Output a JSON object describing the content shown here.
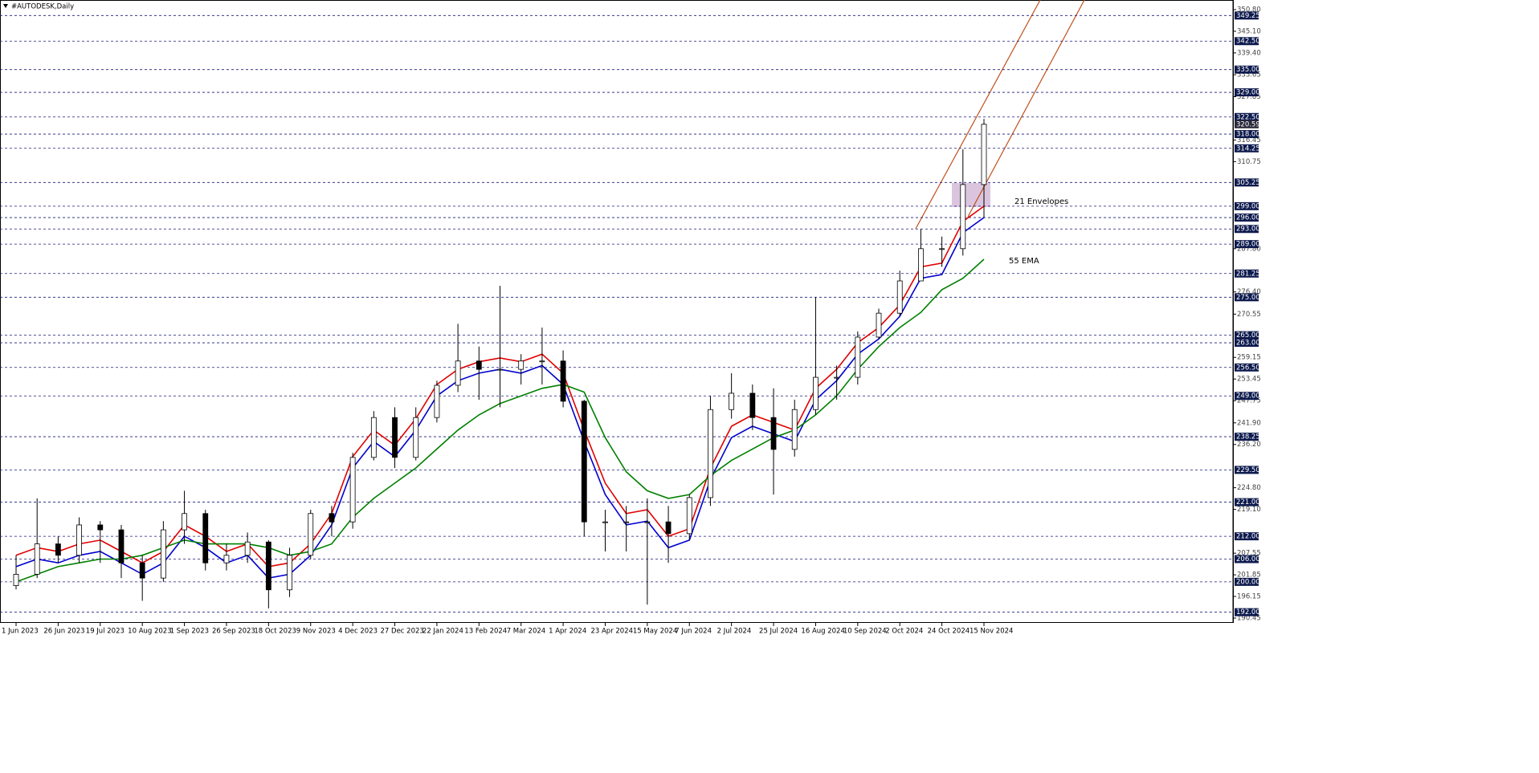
{
  "chart_data": {
    "type": "candlestick",
    "title": "#AUTODESK,Daily",
    "categories": [
      "1 Jun 2023",
      null,
      "26 Jun 2023",
      null,
      "19 Jul 2023",
      null,
      "10 Aug 2023",
      null,
      "1 Sep 2023",
      null,
      "26 Sep 2023",
      null,
      "18 Oct 2023",
      null,
      "9 Nov 2023",
      null,
      "4 Dec 2023",
      null,
      "27 Dec 2023",
      null,
      "22 Jan 2024",
      null,
      "13 Feb 2024",
      null,
      "7 Mar 2024",
      null,
      "1 Apr 2024",
      null,
      "23 Apr 2024",
      null,
      "15 May 2024",
      null,
      "7 Jun 2024",
      null,
      "2 Jul 2024",
      null,
      "25 Jul 2024",
      null,
      "16 Aug 2024",
      null,
      "10 Sep 2024",
      null,
      "2 Oct 2024",
      null,
      "24 Oct 2024",
      null,
      "15 Nov 2024"
    ],
    "open": [
      199,
      202,
      210,
      207,
      215,
      213.7,
      205,
      201,
      213.7,
      218,
      205,
      207,
      210.5,
      197.9,
      207,
      218,
      215.8,
      232.8,
      243.3,
      232.8,
      243.3,
      251.8,
      258.2,
      256,
      256,
      258.2,
      258.2,
      247.6,
      215.8,
      215.8,
      215.8,
      215.8,
      212.7,
      222.2,
      245.4,
      249.7,
      243.3,
      234.9,
      245.4,
      253.9,
      253.9,
      264.5,
      270.8,
      279.3,
      287.8,
      287.8,
      304.7
    ],
    "high": [
      207,
      222,
      212,
      217,
      216,
      215,
      207,
      216,
      224,
      219,
      210,
      213,
      211,
      209,
      219,
      220,
      234,
      245,
      246,
      246,
      253,
      268,
      262,
      278,
      260,
      267,
      261,
      248,
      219,
      220,
      222,
      220,
      223,
      249,
      255,
      252,
      251,
      248,
      275,
      257,
      266,
      272,
      282,
      293,
      291,
      314,
      322
    ],
    "low": [
      198,
      201,
      205,
      205,
      205,
      201,
      195,
      200,
      210,
      203,
      203,
      205,
      193,
      196,
      206,
      212,
      214,
      232,
      230,
      232,
      242,
      250,
      248,
      246,
      252,
      252,
      246,
      212,
      208,
      208,
      194,
      205,
      211,
      220,
      243,
      240,
      223,
      233,
      244,
      248,
      252,
      264,
      270,
      280,
      283,
      286,
      296
    ],
    "close": [
      202,
      210,
      207,
      215,
      213.7,
      205,
      201,
      213.7,
      218,
      205,
      207,
      210.5,
      197.9,
      207,
      218,
      215.8,
      232.8,
      243.3,
      232.8,
      243.3,
      251.8,
      258.2,
      256,
      256,
      258.2,
      258.2,
      247.6,
      215.8,
      215.8,
      215.8,
      215.8,
      212.7,
      222.2,
      245.4,
      249.7,
      243.3,
      234.9,
      245.4,
      253.9,
      253.9,
      264.5,
      270.8,
      279.3,
      287.8,
      287.8,
      304.7,
      320.59
    ],
    "lines": [
      {
        "color": "#e00000",
        "values": [
          207,
          209,
          208,
          210,
          211,
          208,
          205,
          208,
          215,
          212,
          208,
          210,
          204,
          205,
          210,
          218,
          233,
          240,
          236,
          243,
          252,
          256,
          258,
          259,
          258,
          260,
          255,
          240,
          226,
          218,
          219,
          212,
          214,
          230,
          241,
          244,
          242,
          240,
          251,
          256,
          263,
          267,
          273,
          283,
          284,
          295,
          299
        ]
      },
      {
        "color": "#0000cc",
        "values": [
          204,
          206,
          205,
          207,
          208,
          205,
          202,
          205,
          212,
          209,
          205,
          207,
          201,
          202,
          207,
          215,
          230,
          237,
          233,
          240,
          249,
          253,
          255,
          256,
          255,
          257,
          252,
          237,
          223,
          215,
          216,
          209,
          211,
          227,
          238,
          241,
          239,
          237,
          248,
          253,
          260,
          264,
          270,
          280,
          281,
          292,
          296
        ]
      },
      {
        "color": "#008000",
        "values": [
          200,
          202,
          204,
          205,
          206,
          206,
          207,
          209,
          211,
          210,
          210,
          210,
          209,
          207,
          208,
          210,
          217,
          222,
          226,
          230,
          235,
          240,
          244,
          247,
          249,
          251,
          252,
          250,
          238,
          229,
          224,
          222,
          223,
          228,
          232,
          235,
          238,
          240,
          244,
          249,
          256,
          262,
          267,
          271,
          277,
          280,
          285
        ]
      }
    ],
    "ylim": [
      190.45,
      350.8
    ],
    "yticks": [
      {
        "value": 350.8,
        "label": "350.80"
      },
      {
        "value": 345.1,
        "label": "345.10"
      },
      {
        "value": 339.4,
        "label": "339.40"
      },
      333.65,
      327.85,
      316.45,
      310.75,
      {
        "value": 287.8,
        "label": "287.80"
      },
      {
        "value": 276.4,
        "label": "276.40"
      },
      270.55,
      259.15,
      253.45,
      247.75,
      {
        "value": 241.9,
        "label": "241.90"
      },
      {
        "value": 236.2,
        "label": "236.20"
      },
      {
        "value": 224.8,
        "label": "224.80"
      },
      {
        "value": 219.1,
        "label": "219.10"
      },
      207.55,
      201.85,
      196.15,
      190.45
    ],
    "levels": [
      349.25,
      {
        "value": 342.5,
        "label": "342.50"
      },
      {
        "value": 335,
        "label": "335.00"
      },
      {
        "value": 329,
        "label": "329.00"
      },
      {
        "value": 322.5,
        "label": "322.50"
      },
      {
        "value": 318,
        "label": "318.00"
      },
      314.25,
      305.25,
      {
        "value": 299,
        "label": "299.00"
      },
      {
        "value": 296,
        "label": "296.00"
      },
      {
        "value": 293,
        "label": "293.00"
      },
      {
        "value": 289,
        "label": "289.00"
      },
      281.25,
      {
        "value": 275,
        "label": "275.00"
      },
      {
        "value": 265,
        "label": "265.00"
      },
      {
        "value": 263,
        "label": "263.00"
      },
      {
        "value": 256.5,
        "label": "256.50"
      },
      {
        "value": 249,
        "label": "249.00"
      },
      238.25,
      {
        "value": 229.5,
        "label": "229.50"
      },
      {
        "value": 221,
        "label": "221.00"
      },
      {
        "value": 212,
        "label": "212.00"
      },
      {
        "value": 206,
        "label": "206.00"
      },
      {
        "value": 200,
        "label": "200.00"
      },
      {
        "value": 192,
        "label": "192.00"
      }
    ],
    "current_price": 320.59,
    "annotations": [
      {
        "text": "21 Envelopes",
        "color": "#2222cc"
      },
      {
        "text": "55 EMA",
        "color": "#008000"
      }
    ]
  }
}
